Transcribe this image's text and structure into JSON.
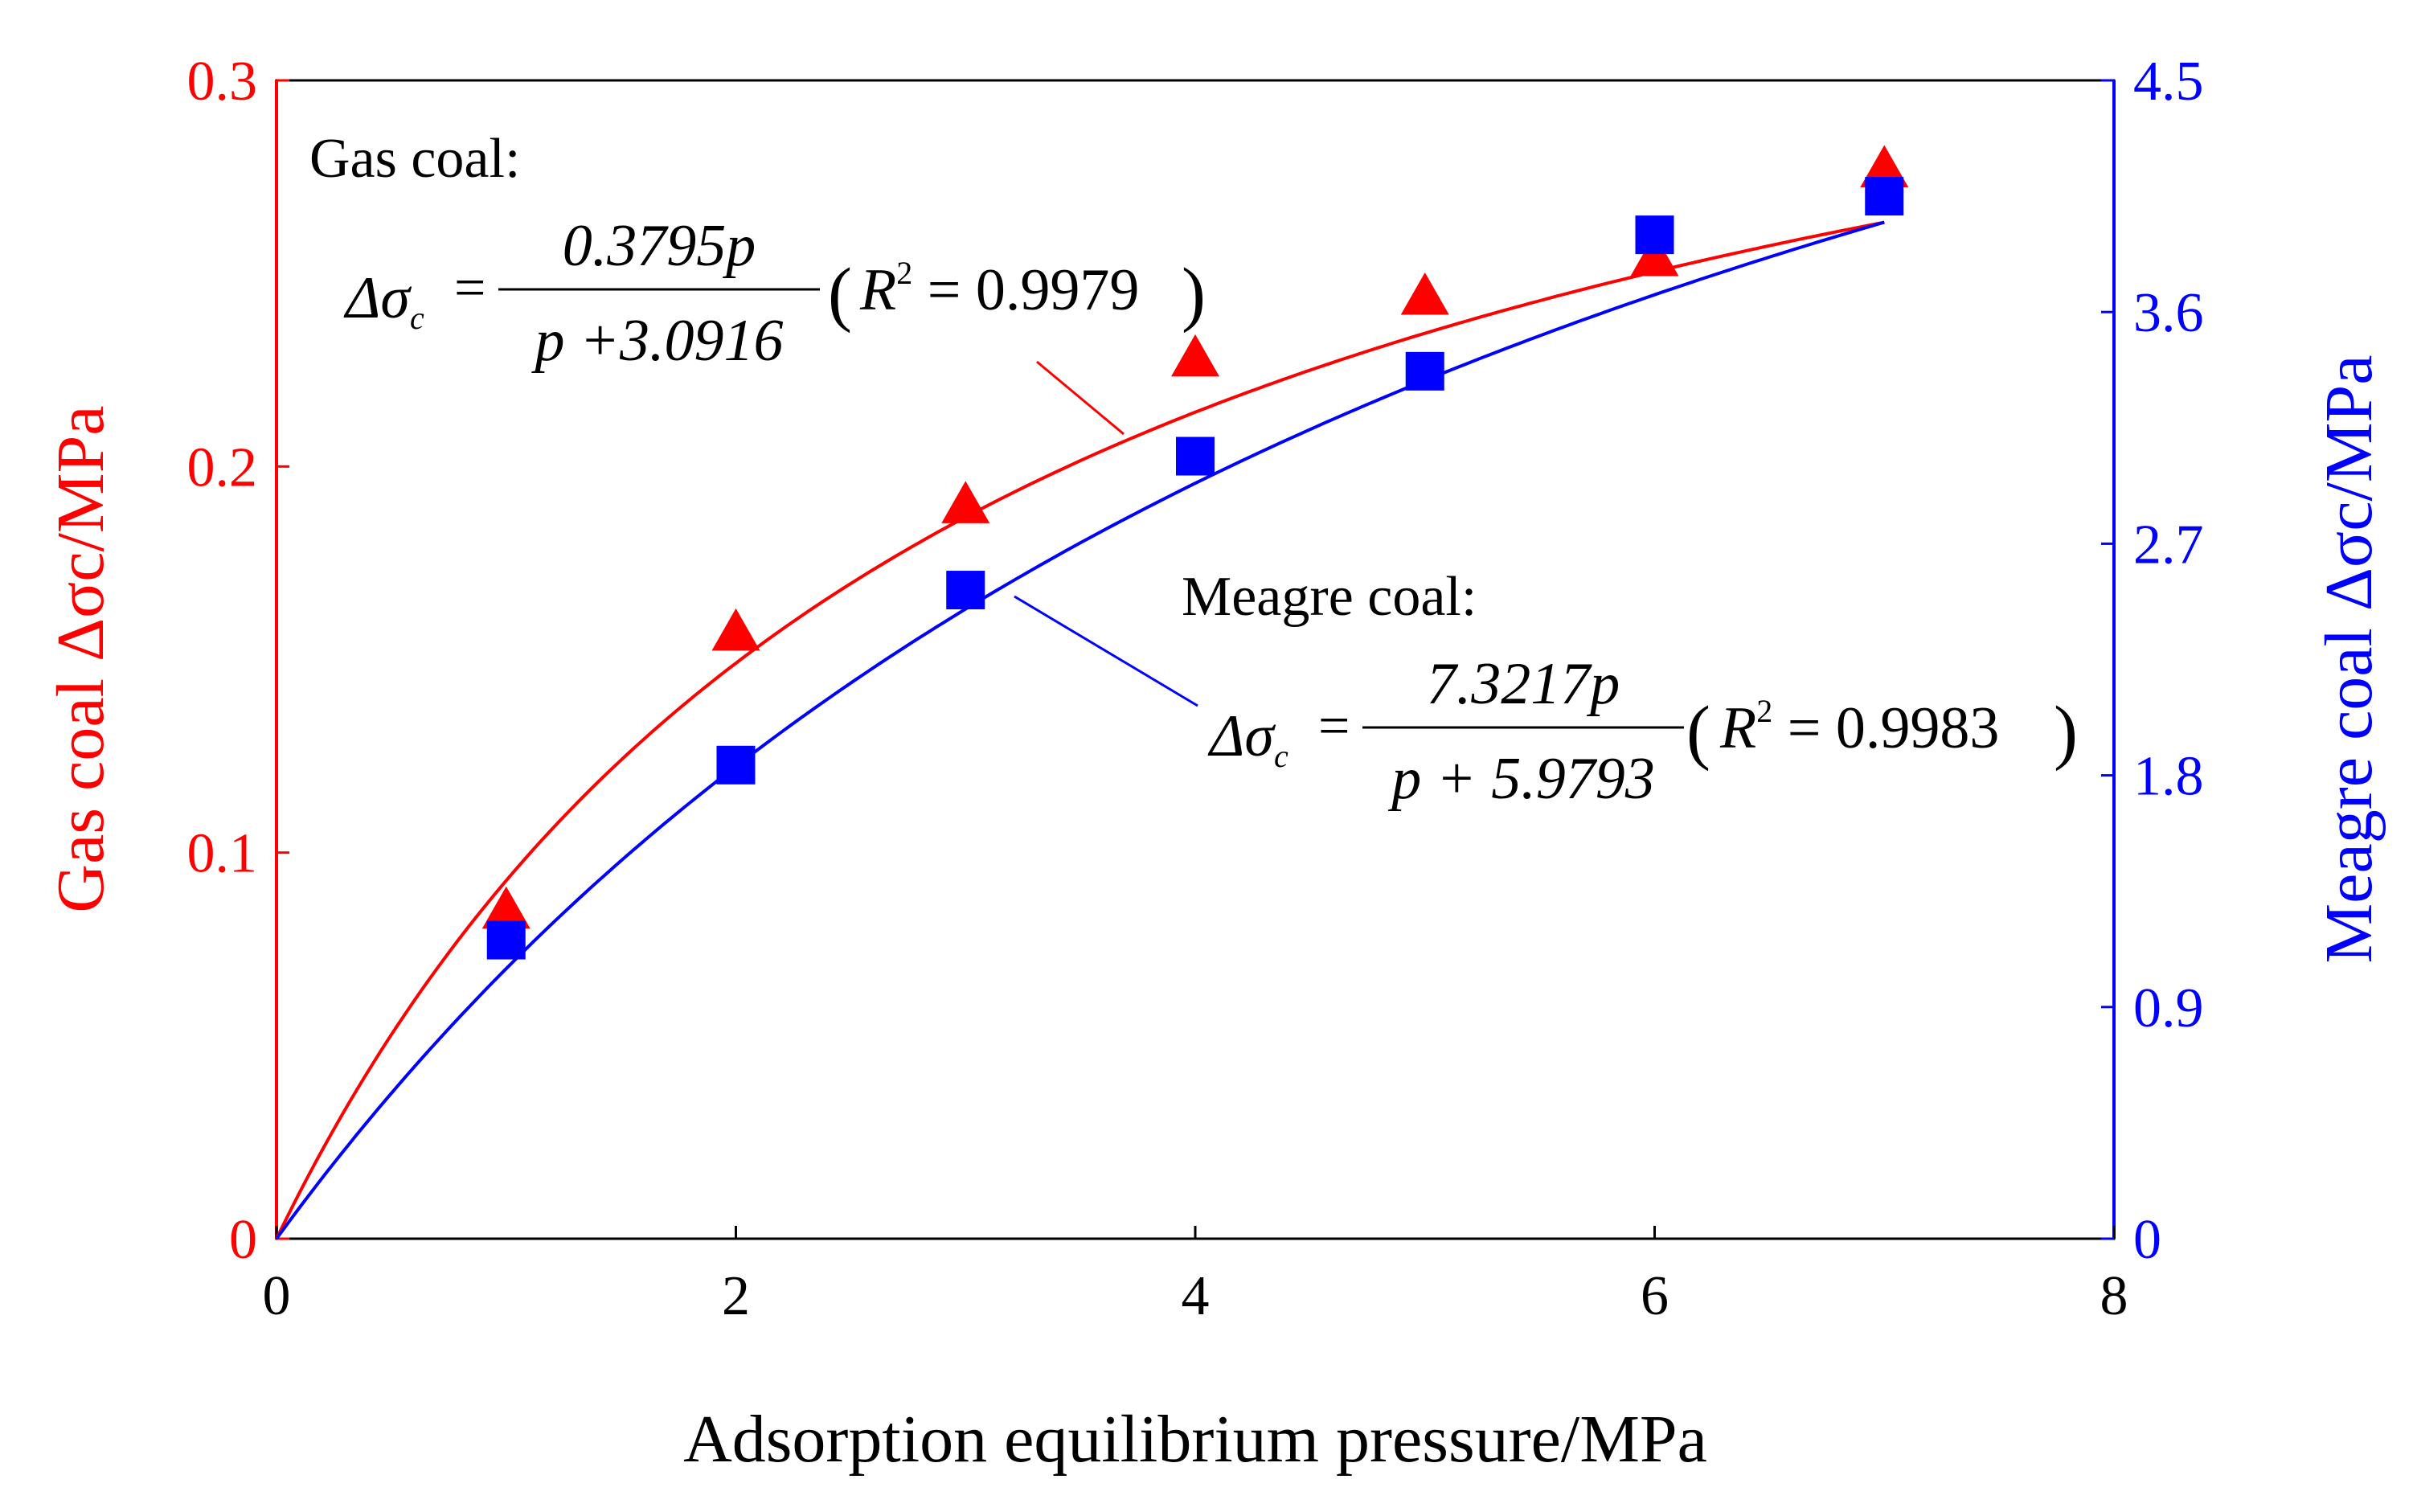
{
  "chart_data": {
    "type": "scatter",
    "x_axis": {
      "label": "Adsorption equilibrium pressure/MPa",
      "min": 0,
      "max": 8,
      "ticks": [
        0,
        2,
        4,
        6,
        8
      ],
      "tick_labels": [
        "0",
        "2",
        "4",
        "6",
        "8"
      ]
    },
    "y_axis_left": {
      "label": "Gas coal  Δσc/MPa",
      "min": 0,
      "max": 0.3,
      "ticks": [
        0,
        0.1,
        0.2,
        0.3
      ],
      "tick_labels": [
        "0",
        "0.1",
        "0.2",
        "0.3"
      ],
      "color": "#ff0000"
    },
    "y_axis_right": {
      "label": "Meagre coal  Δσc/MPa",
      "min": 0,
      "max": 4.5,
      "ticks": [
        0,
        0.9,
        1.8,
        2.7,
        3.6,
        4.5
      ],
      "tick_labels": [
        "0",
        "0.9",
        "1.8",
        "2.7",
        "3.6",
        "4.5"
      ],
      "color": "#0000ff"
    },
    "series": [
      {
        "name": "Gas coal",
        "axis": "left",
        "marker": "triangle",
        "color": "#ff0000",
        "x": [
          1,
          2,
          3,
          4,
          5,
          6,
          7
        ],
        "y": [
          0.085,
          0.157,
          0.19,
          0.228,
          0.244,
          0.254,
          0.277
        ],
        "fit": {
          "a": 0.3795,
          "b": 3.0916
        }
      },
      {
        "name": "Meagre coal",
        "axis": "right",
        "marker": "square",
        "color": "#0000ff",
        "x": [
          1,
          2,
          3,
          4,
          5,
          6,
          7
        ],
        "y": [
          1.16,
          1.84,
          2.52,
          3.04,
          3.37,
          3.9,
          4.05
        ],
        "fit": {
          "a": 7.3217,
          "b": 5.9793
        }
      }
    ],
    "annotations": {
      "gas": {
        "title": "Gas coal:",
        "lhs": "Δσ",
        "sub": "c",
        "eq": "=",
        "numerator": "0.3795p",
        "denominator": "p +3.0916",
        "r2_open": "(",
        "r2_label": "R",
        "r2_sup": "2",
        "r2_value": " = 0.9979",
        "r2_close": ")"
      },
      "meagre": {
        "title": "Meagre coal:",
        "lhs": "Δσ",
        "sub": "c",
        "eq": "=",
        "numerator": "7.3217p",
        "denominator": "p + 5.9793",
        "r2_open": "(",
        "r2_label": "R",
        "r2_sup": "2",
        "r2_value": " = 0.9983",
        "r2_close": ")"
      }
    },
    "grid": false
  }
}
